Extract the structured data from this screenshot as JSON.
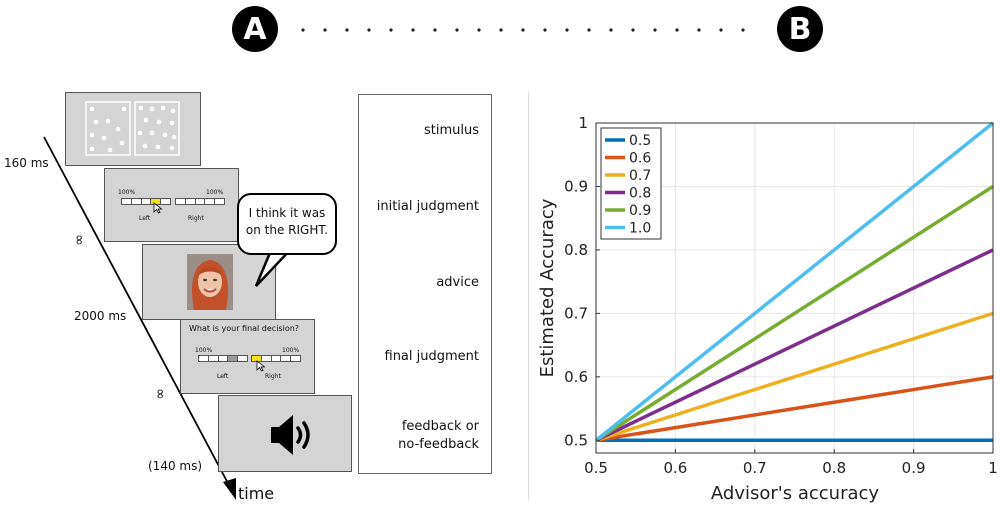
{
  "panels": {
    "a": "A",
    "b": "B"
  },
  "timeline": {
    "time_label": "time",
    "timings": [
      "160 ms",
      "∞",
      "2000 ms",
      "∞",
      "(140 ms)"
    ]
  },
  "stages": [
    "stimulus",
    "initial judgment",
    "advice",
    "final judgment",
    "feedback or\nno-feedback"
  ],
  "initial_screen": {
    "left_pct": "100%",
    "right_pct": "100%",
    "left_label": "Left",
    "right_label": "Right",
    "highlight_color": "#f6e21a"
  },
  "advice_bubble": {
    "line1": "I think it was",
    "line2": "on the RIGHT."
  },
  "final_screen": {
    "question": "What is your final decision?",
    "left_pct": "100%",
    "right_pct": "100%",
    "left_label": "Left",
    "right_label": "Right"
  },
  "icons": {
    "stimulus": "dot-stimulus-icon",
    "advisor": "advisor-face-icon",
    "feedback": "speaker-icon",
    "cursor": "cursor-icon"
  },
  "chart_data": {
    "type": "line",
    "xlabel": "Advisor's accuracy",
    "ylabel": "Estimated Accuracy",
    "xlim": [
      0.5,
      1
    ],
    "ylim": [
      0.48,
      1
    ],
    "xticks": [
      "0.5",
      "0.6",
      "0.7",
      "0.8",
      "0.9",
      "1"
    ],
    "yticks": [
      "0.5",
      "0.6",
      "0.7",
      "0.8",
      "0.9",
      "1"
    ],
    "grid": true,
    "legend_position": "top-left",
    "series": [
      {
        "name": "0.5",
        "color": "#0072bd",
        "x": [
          0.5,
          1
        ],
        "y": [
          0.5,
          0.5
        ]
      },
      {
        "name": "0.6",
        "color": "#d95319",
        "x": [
          0.5,
          1
        ],
        "y": [
          0.5,
          0.6
        ]
      },
      {
        "name": "0.7",
        "color": "#edb120",
        "x": [
          0.5,
          1
        ],
        "y": [
          0.5,
          0.7
        ]
      },
      {
        "name": "0.8",
        "color": "#7e2f8e",
        "x": [
          0.5,
          1
        ],
        "y": [
          0.5,
          0.8
        ]
      },
      {
        "name": "0.9",
        "color": "#77ac30",
        "x": [
          0.5,
          1
        ],
        "y": [
          0.5,
          0.9
        ]
      },
      {
        "name": "1.0",
        "color": "#4dbeee",
        "x": [
          0.5,
          1
        ],
        "y": [
          0.5,
          1.0
        ]
      }
    ]
  }
}
